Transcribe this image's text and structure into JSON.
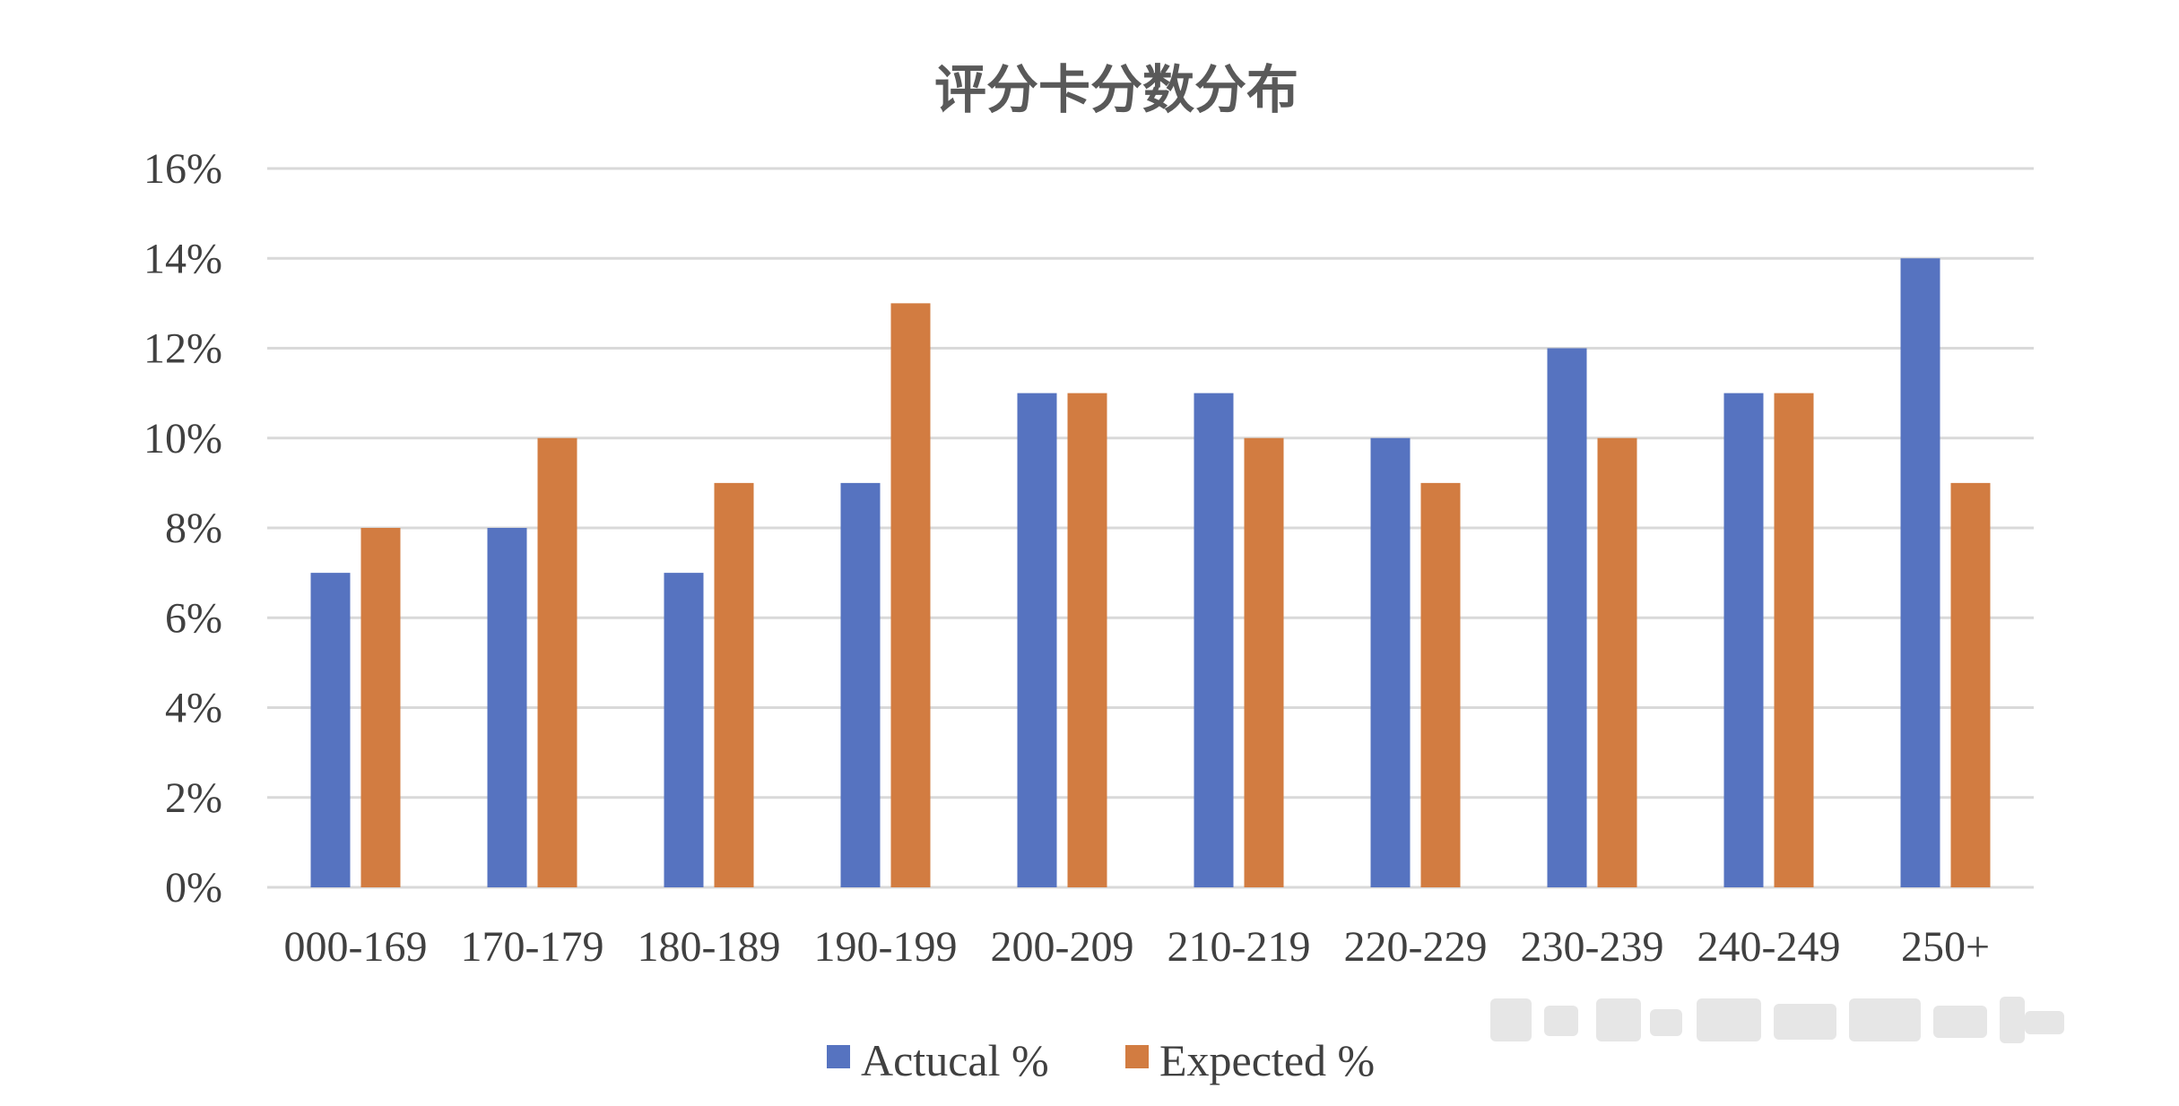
{
  "chart_data": {
    "type": "bar",
    "title": "评分卡分数分布",
    "xlabel": "",
    "ylabel": "",
    "categories": [
      "000-169",
      "170-179",
      "180-189",
      "190-199",
      "200-209",
      "210-219",
      "220-229",
      "230-239",
      "240-249",
      "250+"
    ],
    "series": [
      {
        "name": "Actucal %",
        "values": [
          7,
          8,
          7,
          9,
          11,
          11,
          10,
          12,
          11,
          14
        ],
        "color": "#5673c0"
      },
      {
        "name": "Expected %",
        "values": [
          8,
          10,
          9,
          13,
          11,
          10,
          9,
          10,
          11,
          9
        ],
        "color": "#d27c41"
      }
    ],
    "ylim": [
      0,
      16
    ],
    "yticks": [
      "0%",
      "2%",
      "4%",
      "6%",
      "8%",
      "10%",
      "12%",
      "14%",
      "16%"
    ],
    "grid": true,
    "legend_position": "bottom"
  }
}
